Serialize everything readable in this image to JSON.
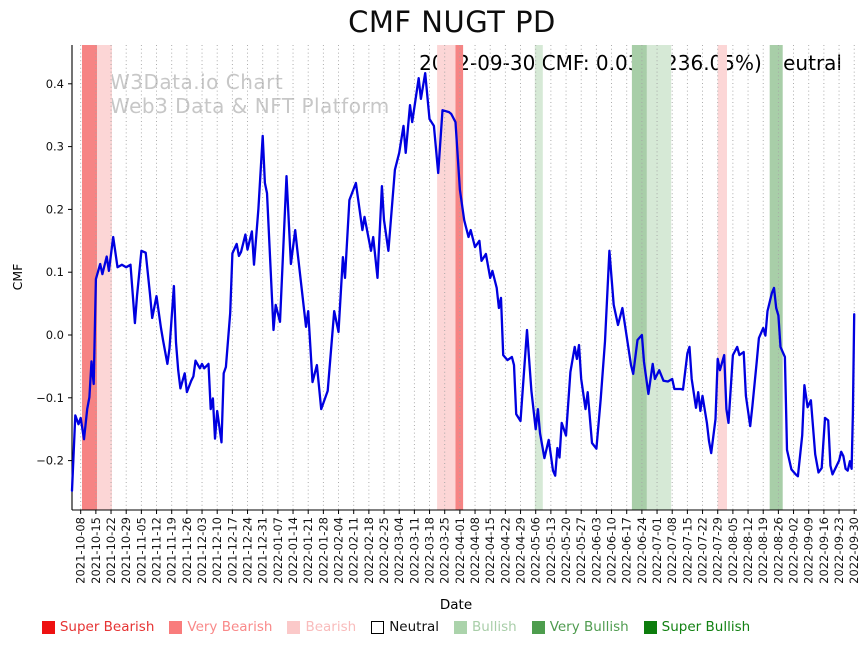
{
  "title": "CMF NUGT PD",
  "annotation": "2022-09-30 CMF: 0.03(+236.05%) Neutral",
  "watermark": {
    "line1": "W3Data.io Chart",
    "line2": "Web3 Data & NFT Platform"
  },
  "axes": {
    "x_label": "Date",
    "y_label": "CMF"
  },
  "legend": [
    {
      "id": "super-bearish",
      "label": "Super Bearish",
      "swatch": "#ee1111",
      "text_color": "#e63333"
    },
    {
      "id": "very-bearish",
      "label": "Very Bearish",
      "swatch": "#f97c7c",
      "text_color": "#f98989"
    },
    {
      "id": "bearish",
      "label": "Bearish",
      "swatch": "#fbc9c9",
      "text_color": "#f9bcbc"
    },
    {
      "id": "neutral",
      "label": "Neutral",
      "swatch": "#ffffff",
      "text_color": "#111111",
      "border": "#000000"
    },
    {
      "id": "bullish",
      "label": "Bullish",
      "swatch": "#abd3ab",
      "text_color": "#a9cea9"
    },
    {
      "id": "very-bullish",
      "label": "Very Bullish",
      "swatch": "#4e9d4e",
      "text_color": "#4f9b4f"
    },
    {
      "id": "super-bullish",
      "label": "Super Bullish",
      "swatch": "#0d7d0d",
      "text_color": "#128112"
    }
  ],
  "chart_data": {
    "type": "line",
    "title": "CMF NUGT PD",
    "xlabel": "Date",
    "ylabel": "CMF",
    "grid": "vertical-dotted-weekly",
    "ylim": [
      -0.28,
      0.462
    ],
    "xlim_days": [
      -4,
      358
    ],
    "y_ticks": [
      0.4,
      0.3,
      0.2,
      0.1,
      0.0,
      -0.1,
      -0.2
    ],
    "x_tick_interval_days": 7,
    "x_start_date": "2021-10-08",
    "points_x_unit": "days since 2021-10-08",
    "x_ticks": [
      "2021-10-08",
      "2021-10-15",
      "2021-10-22",
      "2021-10-29",
      "2021-11-05",
      "2021-11-12",
      "2021-11-19",
      "2021-11-26",
      "2021-12-03",
      "2021-12-10",
      "2021-12-17",
      "2021-12-24",
      "2021-12-31",
      "2022-01-07",
      "2022-01-14",
      "2022-01-21",
      "2022-01-28",
      "2022-02-04",
      "2022-02-11",
      "2022-02-18",
      "2022-02-25",
      "2022-03-04",
      "2022-03-11",
      "2022-03-18",
      "2022-03-25",
      "2022-04-01",
      "2022-04-08",
      "2022-04-15",
      "2022-04-22",
      "2022-04-29",
      "2022-05-06",
      "2022-05-13",
      "2022-05-20",
      "2022-05-27",
      "2022-06-03",
      "2022-06-10",
      "2022-06-17",
      "2022-06-24",
      "2022-07-01",
      "2022-07-08",
      "2022-07-15",
      "2022-07-22",
      "2022-07-29",
      "2022-08-05",
      "2022-08-12",
      "2022-08-19",
      "2022-08-26",
      "2022-09-02",
      "2022-09-09",
      "2022-09-16",
      "2022-09-23",
      "2022-09-30"
    ],
    "band_colors": {
      "very_bearish": "#f68484",
      "bearish": "#fcd6d6",
      "bullish": "#d6e9d6",
      "very_bullish": "#a8cea8"
    },
    "bands": [
      {
        "start_day": 0.6,
        "end_day": 7.5,
        "sentiment": "very_bearish"
      },
      {
        "start_day": 7.5,
        "end_day": 14.4,
        "sentiment": "bearish"
      },
      {
        "start_day": 164.5,
        "end_day": 173.0,
        "sentiment": "bearish"
      },
      {
        "start_day": 173.0,
        "end_day": 176.5,
        "sentiment": "very_bearish"
      },
      {
        "start_day": 209.6,
        "end_day": 213.3,
        "sentiment": "bullish"
      },
      {
        "start_day": 254.4,
        "end_day": 261.3,
        "sentiment": "very_bullish"
      },
      {
        "start_day": 261.3,
        "end_day": 272.5,
        "sentiment": "bullish"
      },
      {
        "start_day": 294.0,
        "end_day": 298.3,
        "sentiment": "bearish"
      },
      {
        "start_day": 318.0,
        "end_day": 324.0,
        "sentiment": "very_bullish"
      }
    ],
    "series": [
      {
        "name": "CMF",
        "color": "#0000e0",
        "points": [
          [
            -4,
            -0.248
          ],
          [
            -2.5,
            -0.128
          ],
          [
            -1,
            -0.142
          ],
          [
            0,
            -0.132
          ],
          [
            1.5,
            -0.166
          ],
          [
            3,
            -0.118
          ],
          [
            4,
            -0.099
          ],
          [
            5,
            -0.042
          ],
          [
            6,
            -0.078
          ],
          [
            7,
            0.089
          ],
          [
            9,
            0.113
          ],
          [
            10,
            0.097
          ],
          [
            12,
            0.125
          ],
          [
            13,
            0.102
          ],
          [
            15,
            0.156
          ],
          [
            17,
            0.108
          ],
          [
            19,
            0.112
          ],
          [
            21,
            0.108
          ],
          [
            23,
            0.112
          ],
          [
            25,
            0.019
          ],
          [
            26,
            0.062
          ],
          [
            28,
            0.134
          ],
          [
            30,
            0.131
          ],
          [
            32,
            0.065
          ],
          [
            33,
            0.027
          ],
          [
            35,
            0.062
          ],
          [
            37,
            0.012
          ],
          [
            38,
            -0.008
          ],
          [
            40,
            -0.046
          ],
          [
            41,
            -0.021
          ],
          [
            43,
            0.078
          ],
          [
            44,
            -0.012
          ],
          [
            45,
            -0.056
          ],
          [
            46,
            -0.085
          ],
          [
            48,
            -0.061
          ],
          [
            49,
            -0.091
          ],
          [
            51,
            -0.073
          ],
          [
            52,
            -0.066
          ],
          [
            53,
            -0.041
          ],
          [
            55,
            -0.053
          ],
          [
            56,
            -0.046
          ],
          [
            57,
            -0.053
          ],
          [
            59,
            -0.046
          ],
          [
            60,
            -0.118
          ],
          [
            61,
            -0.101
          ],
          [
            62,
            -0.165
          ],
          [
            63,
            -0.121
          ],
          [
            65,
            -0.171
          ],
          [
            66,
            -0.061
          ],
          [
            67,
            -0.051
          ],
          [
            69,
            0.035
          ],
          [
            70,
            0.13
          ],
          [
            72,
            0.145
          ],
          [
            73,
            0.126
          ],
          [
            74,
            0.132
          ],
          [
            76,
            0.16
          ],
          [
            77,
            0.136
          ],
          [
            79,
            0.165
          ],
          [
            80,
            0.112
          ],
          [
            82,
            0.201
          ],
          [
            84,
            0.317
          ],
          [
            85,
            0.242
          ],
          [
            86,
            0.226
          ],
          [
            89,
            0.008
          ],
          [
            90,
            0.048
          ],
          [
            92,
            0.021
          ],
          [
            95,
            0.253
          ],
          [
            97,
            0.113
          ],
          [
            99,
            0.167
          ],
          [
            100,
            0.134
          ],
          [
            104,
            0.013
          ],
          [
            105,
            0.038
          ],
          [
            107,
            -0.075
          ],
          [
            109,
            -0.048
          ],
          [
            111,
            -0.118
          ],
          [
            114,
            -0.089
          ],
          [
            117,
            0.038
          ],
          [
            119,
            0.005
          ],
          [
            121,
            0.124
          ],
          [
            122,
            0.091
          ],
          [
            124,
            0.215
          ],
          [
            127,
            0.242
          ],
          [
            130,
            0.167
          ],
          [
            131,
            0.188
          ],
          [
            134,
            0.134
          ],
          [
            135,
            0.156
          ],
          [
            137,
            0.091
          ],
          [
            139,
            0.237
          ],
          [
            140,
            0.183
          ],
          [
            142,
            0.134
          ],
          [
            145,
            0.263
          ],
          [
            147,
            0.29
          ],
          [
            149,
            0.333
          ],
          [
            150,
            0.29
          ],
          [
            152,
            0.366
          ],
          [
            153,
            0.339
          ],
          [
            156,
            0.409
          ],
          [
            157,
            0.376
          ],
          [
            159,
            0.417
          ],
          [
            161,
            0.344
          ],
          [
            163,
            0.333
          ],
          [
            165,
            0.258
          ],
          [
            167,
            0.358
          ],
          [
            170,
            0.355
          ],
          [
            171,
            0.352
          ],
          [
            173,
            0.339
          ],
          [
            175,
            0.231
          ],
          [
            177,
            0.183
          ],
          [
            179,
            0.156
          ],
          [
            180,
            0.167
          ],
          [
            182,
            0.14
          ],
          [
            184,
            0.15
          ],
          [
            185,
            0.118
          ],
          [
            187,
            0.129
          ],
          [
            189,
            0.091
          ],
          [
            190,
            0.102
          ],
          [
            192,
            0.075
          ],
          [
            193,
            0.043
          ],
          [
            194,
            0.059
          ],
          [
            195,
            -0.032
          ],
          [
            197,
            -0.04
          ],
          [
            199,
            -0.035
          ],
          [
            200,
            -0.048
          ],
          [
            201,
            -0.126
          ],
          [
            203,
            -0.137
          ],
          [
            206,
            0.008
          ],
          [
            208,
            -0.089
          ],
          [
            210,
            -0.15
          ],
          [
            211,
            -0.118
          ],
          [
            212,
            -0.156
          ],
          [
            214,
            -0.196
          ],
          [
            216,
            -0.167
          ],
          [
            218,
            -0.216
          ],
          [
            219,
            -0.224
          ],
          [
            220,
            -0.18
          ],
          [
            221,
            -0.195
          ],
          [
            222,
            -0.14
          ],
          [
            224,
            -0.16
          ],
          [
            226,
            -0.059
          ],
          [
            228,
            -0.019
          ],
          [
            229,
            -0.038
          ],
          [
            230,
            -0.016
          ],
          [
            231,
            -0.07
          ],
          [
            233,
            -0.118
          ],
          [
            234,
            -0.091
          ],
          [
            236,
            -0.172
          ],
          [
            238,
            -0.181
          ],
          [
            240,
            -0.102
          ],
          [
            242,
            -0.01
          ],
          [
            244,
            0.134
          ],
          [
            246,
            0.048
          ],
          [
            248,
            0.016
          ],
          [
            250,
            0.043
          ],
          [
            254,
            -0.048
          ],
          [
            255,
            -0.062
          ],
          [
            257,
            -0.008
          ],
          [
            259,
            0.0
          ],
          [
            260,
            -0.043
          ],
          [
            262,
            -0.094
          ],
          [
            264,
            -0.046
          ],
          [
            265,
            -0.07
          ],
          [
            267,
            -0.056
          ],
          [
            269,
            -0.073
          ],
          [
            271,
            -0.074
          ],
          [
            273,
            -0.07
          ],
          [
            274,
            -0.086
          ],
          [
            277,
            -0.086
          ],
          [
            278,
            -0.087
          ],
          [
            280,
            -0.029
          ],
          [
            281,
            -0.019
          ],
          [
            282,
            -0.07
          ],
          [
            284,
            -0.116
          ],
          [
            285,
            -0.091
          ],
          [
            286,
            -0.121
          ],
          [
            287,
            -0.097
          ],
          [
            289,
            -0.14
          ],
          [
            290,
            -0.169
          ],
          [
            291,
            -0.188
          ],
          [
            293,
            -0.134
          ],
          [
            294,
            -0.038
          ],
          [
            295,
            -0.056
          ],
          [
            297,
            -0.032
          ],
          [
            298,
            -0.118
          ],
          [
            299,
            -0.14
          ],
          [
            301,
            -0.032
          ],
          [
            303,
            -0.019
          ],
          [
            304,
            -0.032
          ],
          [
            306,
            -0.027
          ],
          [
            307,
            -0.097
          ],
          [
            309,
            -0.145
          ],
          [
            310,
            -0.113
          ],
          [
            312,
            -0.043
          ],
          [
            313,
            -0.005
          ],
          [
            315,
            0.011
          ],
          [
            316,
            -0.001
          ],
          [
            317,
            0.038
          ],
          [
            319,
            0.067
          ],
          [
            320,
            0.075
          ],
          [
            321,
            0.043
          ],
          [
            322,
            0.031
          ],
          [
            323,
            -0.019
          ],
          [
            325,
            -0.035
          ],
          [
            326,
            -0.183
          ],
          [
            328,
            -0.214
          ],
          [
            330,
            -0.222
          ],
          [
            331,
            -0.225
          ],
          [
            333,
            -0.16
          ],
          [
            334,
            -0.08
          ],
          [
            335.5,
            -0.115
          ],
          [
            337,
            -0.104
          ],
          [
            339,
            -0.19
          ],
          [
            340.5,
            -0.219
          ],
          [
            342,
            -0.212
          ],
          [
            343.5,
            -0.132
          ],
          [
            345,
            -0.136
          ],
          [
            346,
            -0.208
          ],
          [
            347,
            -0.222
          ],
          [
            348.5,
            -0.211
          ],
          [
            350,
            -0.2
          ],
          [
            351,
            -0.186
          ],
          [
            352,
            -0.193
          ],
          [
            353,
            -0.213
          ],
          [
            354,
            -0.216
          ],
          [
            355,
            -0.201
          ],
          [
            355.8,
            -0.213
          ],
          [
            356.4,
            -0.124
          ],
          [
            357,
            0.033
          ]
        ]
      }
    ]
  }
}
